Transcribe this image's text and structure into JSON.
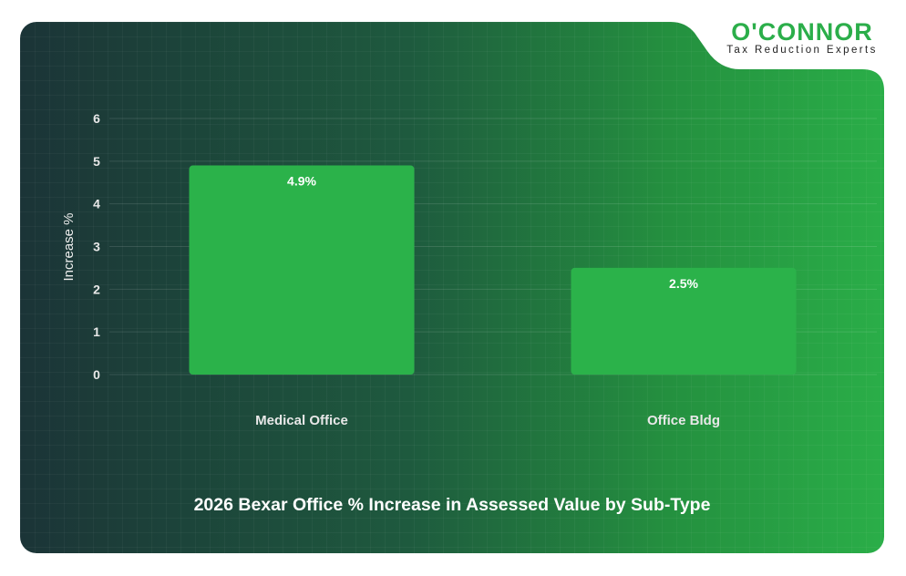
{
  "brand": {
    "name": "O'CONNOR",
    "tagline": "Tax Reduction Experts",
    "color": "#2bae4a"
  },
  "chart_data": {
    "type": "bar",
    "title": "2026 Bexar Office % Increase in Assessed Value by Sub-Type",
    "xlabel": "",
    "ylabel": "Increase %",
    "categories": [
      "Medical Office",
      "Office Bldg"
    ],
    "values": [
      4.9,
      2.5
    ],
    "data_labels": [
      "4.9%",
      "2.5%"
    ],
    "ylim": [
      0,
      6
    ],
    "yticks": [
      "0",
      "1",
      "2",
      "3",
      "4",
      "5",
      "6"
    ],
    "grid": true,
    "bar_color": "#2bb24a"
  }
}
